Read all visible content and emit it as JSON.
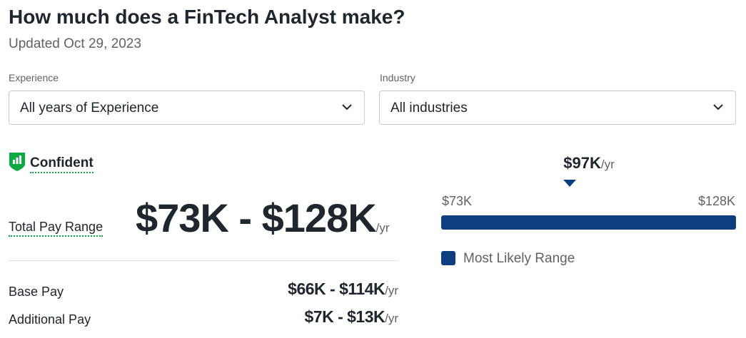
{
  "header": {
    "title": "How much does a FinTech Analyst make?",
    "updated": "Updated Oct 29, 2023"
  },
  "filters": {
    "experience": {
      "label": "Experience",
      "value": "All years of Experience",
      "icon": "chevron-down-icon"
    },
    "industry": {
      "label": "Industry",
      "value": "All industries",
      "icon": "chevron-down-icon"
    }
  },
  "confidence": {
    "label": "Confident",
    "icon": "bar-chart-shield-icon",
    "color": "#0caa41"
  },
  "pay": {
    "total_label": "Total Pay Range",
    "total_range": "$73K - $128K",
    "unit": "/yr",
    "rows": [
      {
        "label": "Base Pay",
        "range": "$66K - $114K",
        "unit": "/yr"
      },
      {
        "label": "Additional Pay",
        "range": "$7K - $13K",
        "unit": "/yr"
      }
    ]
  },
  "range_chart": {
    "median": "$97K",
    "median_unit": "/yr",
    "min_label": "$73K",
    "max_label": "$128K",
    "min_value": 73,
    "max_value": 128,
    "median_value": 97,
    "likely_low": 73,
    "likely_high": 128,
    "legend_label": "Most Likely Range",
    "bar_color": "#0d3f80"
  }
}
